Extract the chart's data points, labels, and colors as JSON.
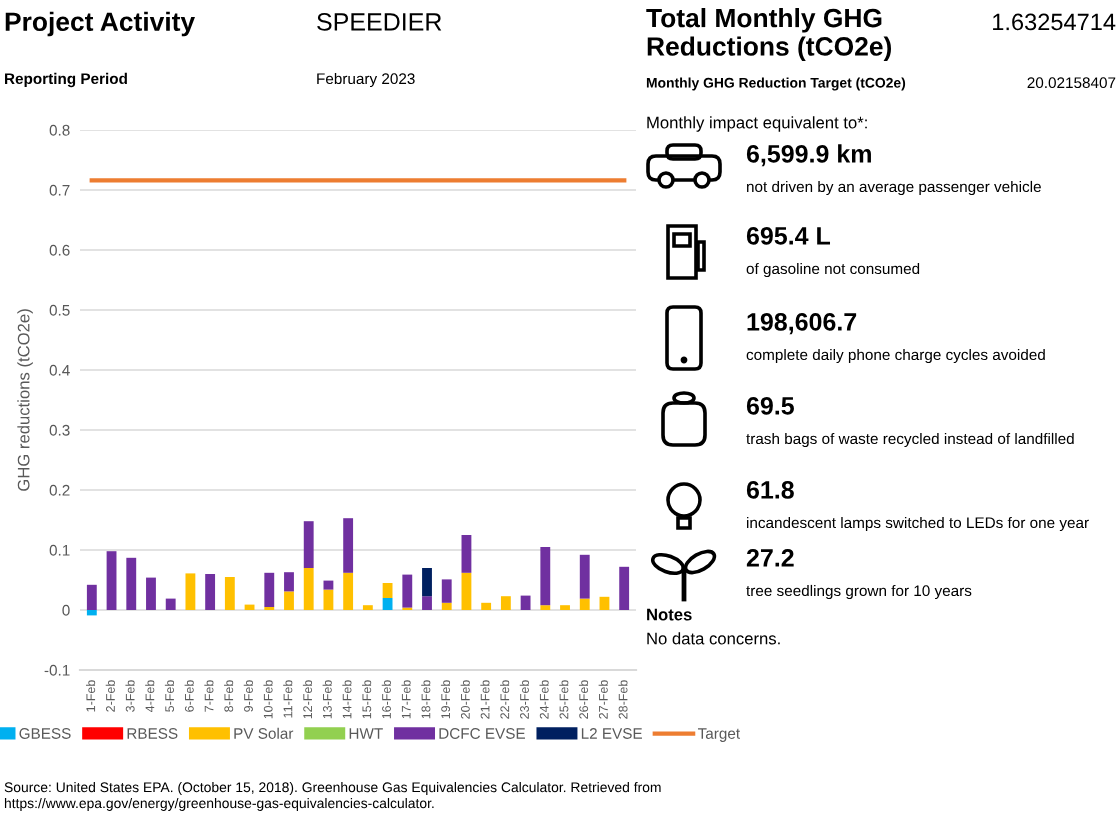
{
  "chart_data": [
    {
      "type": "bar",
      "stacked": true,
      "title": "Project Activity",
      "annotations": [
        "SPEEDIER",
        "Reporting Period",
        "February 2023",
        "Source: United States EPA. (October 15, 2018). Greenhouse Gas Equivalencies Calculator. Retrieved from https://www.epa.gov/energy/greenhouse-gas-equivalencies-calculator."
      ],
      "ylabel": "GHG reductions (tCO2e)",
      "categories": [
        "1-Feb",
        "2-Feb",
        "3-Feb",
        "4-Feb",
        "5-Feb",
        "6-Feb",
        "7-Feb",
        "8-Feb",
        "9-Feb",
        "10-Feb",
        "11-Feb",
        "12-Feb",
        "13-Feb",
        "14-Feb",
        "15-Feb",
        "16-Feb",
        "17-Feb",
        "18-Feb",
        "19-Feb",
        "20-Feb",
        "21-Feb",
        "22-Feb",
        "23-Feb",
        "24-Feb",
        "25-Feb",
        "26-Feb",
        "27-Feb",
        "28-Feb"
      ],
      "series": [
        {
          "name": "GBESS",
          "color": "#00b0f0",
          "values": [
            -0.009,
            null,
            null,
            null,
            null,
            null,
            null,
            null,
            null,
            null,
            null,
            null,
            null,
            null,
            null,
            0.02,
            null,
            null,
            null,
            null,
            null,
            null,
            null,
            null,
            null,
            null,
            null,
            null
          ]
        },
        {
          "name": "RBESS",
          "color": "#ff0000",
          "values": [
            null,
            null,
            null,
            null,
            null,
            null,
            null,
            null,
            null,
            null,
            null,
            null,
            null,
            null,
            null,
            null,
            null,
            null,
            null,
            null,
            null,
            null,
            null,
            null,
            null,
            null,
            null,
            null
          ]
        },
        {
          "name": "PV Solar",
          "color": "#ffc000",
          "values": [
            null,
            null,
            null,
            null,
            null,
            0.061,
            null,
            0.055,
            0.009,
            0.005,
            0.031,
            0.07,
            0.034,
            0.062,
            0.008,
            0.025,
            0.004,
            null,
            0.012,
            0.062,
            0.012,
            0.023,
            null,
            0.008,
            0.008,
            0.019,
            0.022,
            null
          ]
        },
        {
          "name": "HWT",
          "color": "#92d050",
          "values": [
            null,
            null,
            null,
            null,
            null,
            null,
            null,
            null,
            null,
            null,
            null,
            null,
            null,
            null,
            null,
            null,
            null,
            null,
            null,
            null,
            null,
            null,
            null,
            null,
            null,
            null,
            null,
            null
          ]
        },
        {
          "name": "DCFC EVSE",
          "color": "#7030a0",
          "values": [
            0.042,
            0.098,
            0.087,
            0.054,
            0.019,
            null,
            0.06,
            null,
            null,
            0.057,
            0.032,
            0.078,
            0.015,
            0.091,
            null,
            null,
            0.055,
            0.023,
            0.039,
            0.063,
            null,
            null,
            0.024,
            0.097,
            null,
            0.073,
            null,
            0.072
          ]
        },
        {
          "name": "L2 EVSE",
          "color": "#002060",
          "values": [
            null,
            null,
            null,
            null,
            null,
            null,
            null,
            null,
            null,
            null,
            null,
            null,
            null,
            null,
            null,
            null,
            null,
            0.047,
            null,
            null,
            null,
            null,
            null,
            null,
            null,
            null,
            null,
            null
          ]
        },
        {
          "name": "Target",
          "type": "line",
          "color": "#ed7d31",
          "values": [
            0.716,
            0.716,
            0.716,
            0.716,
            0.716,
            0.716,
            0.716,
            0.716,
            0.716,
            0.716,
            0.716,
            0.716,
            0.716,
            0.716,
            0.716,
            0.716,
            0.716,
            0.716,
            0.716,
            0.716,
            0.716,
            0.716,
            0.716,
            0.716,
            0.716,
            0.716,
            0.716,
            0.716
          ]
        }
      ],
      "ylim": [
        -0.1,
        0.8
      ],
      "yticks": [
        -0.1,
        0,
        0.1,
        0.2,
        0.3,
        0.4,
        0.5,
        0.6,
        0.7,
        0.8
      ],
      "grid": "y",
      "legend": "bottom"
    },
    {
      "type": "other",
      "title": "Total Monthly GHG Reductions (tCO2e)",
      "annotations": [
        "1.63254714",
        "Monthly GHG Reduction Target (tCO2e)",
        "20.02158407",
        "Monthly impact equivalent to*:",
        "6,599.9 km",
        "not driven by an average passenger vehicle",
        "695.4 L",
        "of gasoline not consumed",
        "198,606.7",
        "complete daily phone charge cycles avoided",
        "69.5",
        "trash bags of waste recycled instead of landfilled",
        "61.8",
        "incandescent lamps switched to LEDs for one year",
        "27.2",
        "tree seedlings grown for 10 years",
        "Notes",
        "No data concerns."
      ]
    }
  ]
}
